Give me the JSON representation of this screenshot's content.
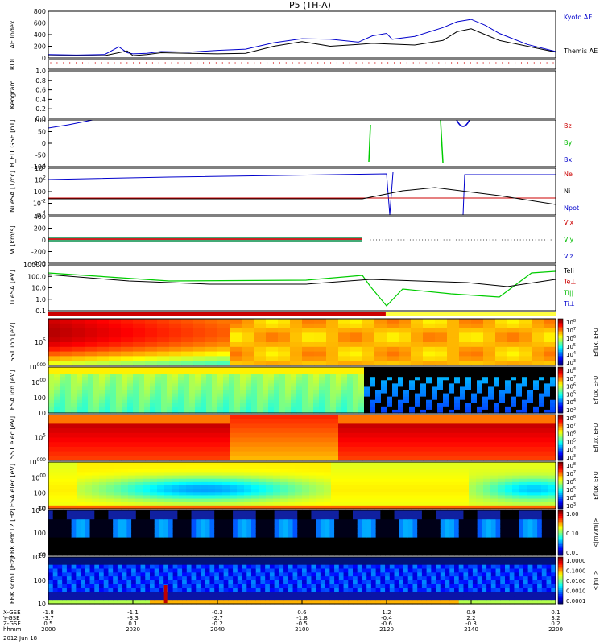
{
  "title": "P5 (TH-A)",
  "chart_data": {
    "type": "line",
    "title": "P5 (TH-A)",
    "date": "2012 Jun 18",
    "time_axis": {
      "ticks": [
        "2000",
        "2020",
        "2040",
        "2100",
        "2120",
        "2140",
        "2200"
      ],
      "rows": [
        {
          "label": "X-GSE",
          "values": [
            "-1.8",
            "-1.1",
            "-0.3",
            "0.6",
            "1.2",
            "0.9",
            "0.1"
          ]
        },
        {
          "label": "Y-GSE",
          "values": [
            "-3.7",
            "-3.3",
            "-2.7",
            "-1.8",
            "-0.4",
            "2.2",
            "3.2"
          ]
        },
        {
          "label": "Z-GSE",
          "values": [
            "0.5",
            "0.1",
            "-0.2",
            "-0.5",
            "-0.6",
            "-0.3",
            "0.2"
          ]
        },
        {
          "label": "hhmm",
          "values": [
            "2000",
            "2020",
            "2040",
            "2100",
            "2120",
            "2140",
            "2200"
          ]
        }
      ]
    },
    "panels": [
      {
        "id": "ae",
        "ylabel": "AE Index",
        "ylim": [
          0,
          800
        ],
        "yticks": [
          "0",
          "200",
          "400",
          "600",
          "800"
        ],
        "legend": [
          "Kyoto AE",
          "Themis AE"
        ],
        "legend_colors": [
          "#0000cc",
          "#000000"
        ],
        "series": [
          {
            "name": "Kyoto AE",
            "color": "#0000cc",
            "x": [
              0,
              10,
              20,
              25,
              28,
              30,
              35,
              40,
              50,
              60,
              70,
              80,
              90,
              100,
              110,
              115,
              120,
              122,
              130,
              140,
              145,
              150,
              155,
              160,
              170,
              180
            ],
            "y": [
              60,
              50,
              60,
              190,
              90,
              70,
              80,
              110,
              100,
              130,
              150,
              260,
              330,
              320,
              270,
              380,
              420,
              320,
              370,
              520,
              620,
              660,
              560,
              420,
              230,
              110
            ]
          },
          {
            "name": "Themis AE",
            "color": "#000000",
            "x": [
              0,
              10,
              20,
              28,
              30,
              35,
              40,
              50,
              60,
              70,
              80,
              90,
              100,
              110,
              115,
              120,
              130,
              140,
              145,
              150,
              155,
              160,
              170,
              180
            ],
            "y": [
              40,
              40,
              40,
              120,
              40,
              60,
              90,
              80,
              70,
              80,
              200,
              280,
              200,
              230,
              250,
              240,
              220,
              300,
              450,
              500,
              400,
              300,
              200,
              100
            ]
          }
        ]
      },
      {
        "id": "roi",
        "ylabel": "ROI"
      },
      {
        "id": "keogram",
        "ylabel": "Keogram",
        "ylim": [
          0,
          1
        ],
        "yticks": [
          "0.0",
          "0.2",
          "0.4",
          "0.6",
          "0.8",
          "1.0"
        ]
      },
      {
        "id": "bfit",
        "ylabel": "B_FIT GSE [nT]",
        "ylim": [
          -100,
          100
        ],
        "yticks": [
          "-100",
          "-50",
          "0",
          "50",
          "100"
        ],
        "legend": [
          "Bz",
          "By",
          "Bx"
        ],
        "legend_colors": [
          "#cc0000",
          "#00bb00",
          "#0000cc"
        ]
      },
      {
        "id": "ni",
        "ylabel": "Ni eSA [1/cc]",
        "yticks": [
          "10-4",
          "10-2",
          "100",
          "102",
          "104"
        ],
        "legend": [
          "Ne",
          "Ni",
          "Npot"
        ],
        "legend_colors": [
          "#cc0000",
          "#000000",
          "#0000cc"
        ]
      },
      {
        "id": "vi",
        "ylabel": "Vi [km/s]",
        "ylim": [
          -400,
          400
        ],
        "yticks": [
          "-400",
          "-200",
          "0",
          "200",
          "400"
        ],
        "legend": [
          "Vix",
          "Viy",
          "Viz"
        ],
        "legend_colors": [
          "#cc0000",
          "#00bb00",
          "#0000cc"
        ]
      },
      {
        "id": "ti",
        "ylabel": "Ti eSA [eV]",
        "yticks": [
          "0.1",
          "1.0",
          "10.0",
          "100.0",
          "1000.0"
        ],
        "legend": [
          "Teli",
          "Te⊥",
          "Ti||",
          "Ti⊥"
        ],
        "legend_colors": [
          "#000000",
          "#cc0000",
          "#00bb00",
          "#0000cc"
        ]
      },
      {
        "id": "sst_i",
        "ylabel": "SST ion [eV]",
        "yticks": [
          "10^5"
        ],
        "colorbar_label": "Eflux, EFU",
        "colorbar_ticks": [
          "10^8",
          "10^7",
          "10^6",
          "10^5",
          "10^4",
          "10^3"
        ]
      },
      {
        "id": "esa_i",
        "ylabel": "ESA ion [eV]",
        "yticks": [
          "10",
          "100",
          "1000",
          "10000"
        ],
        "colorbar_label": "Eflux, EFU",
        "colorbar_ticks": [
          "10^8",
          "10^7",
          "10^6",
          "10^5",
          "10^4",
          "10^3"
        ]
      },
      {
        "id": "sst_e",
        "ylabel": "SST elec [eV]",
        "yticks": [
          "10^5"
        ],
        "colorbar_label": "Eflux, EFU",
        "colorbar_ticks": [
          "10^8",
          "10^7",
          "10^6",
          "10^5",
          "10^4",
          "10^3"
        ]
      },
      {
        "id": "esa_e",
        "ylabel": "ESA elec [eV]",
        "yticks": [
          "10",
          "100",
          "1000",
          "10000"
        ],
        "colorbar_label": "Eflux, EFU",
        "colorbar_ticks": [
          "10^8",
          "10^7",
          "10^6",
          "10^5",
          "10^4",
          "10^3"
        ]
      },
      {
        "id": "fbk_e",
        "ylabel": "FBK edc12 [Hz]",
        "yticks": [
          "10",
          "100",
          "1000"
        ],
        "colorbar_label": "<|mV/m|>",
        "colorbar_ticks": [
          "1.00",
          "0.10",
          "0.01"
        ]
      },
      {
        "id": "fbk_s",
        "ylabel": "FBK scm1 [Hz]",
        "yticks": [
          "10",
          "100",
          "1000"
        ],
        "colorbar_label": "<|nT|>",
        "colorbar_ticks": [
          "1.0000",
          "0.1000",
          "0.0100",
          "0.0010",
          "0.0001"
        ]
      }
    ]
  }
}
